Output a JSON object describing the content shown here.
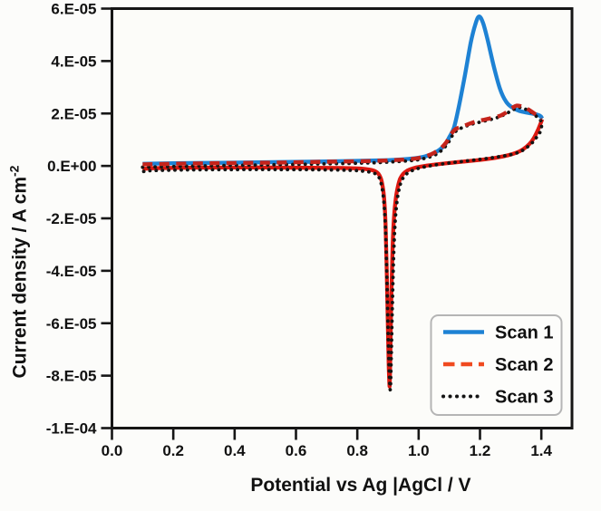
{
  "page": {
    "background": "#fcfcfa"
  },
  "chart_data": {
    "type": "line",
    "title": "",
    "xlabel": "Potential vs Ag |AgCl / V",
    "ylabel": {
      "base": "Current density / A cm",
      "sup": "-2"
    },
    "xlim": [
      0.0,
      1.5
    ],
    "ylim": [
      -0.0001,
      6e-05
    ],
    "grid": false,
    "x_ticks": [
      {
        "v": 0.0,
        "label": "0.0"
      },
      {
        "v": 0.2,
        "label": "0.2"
      },
      {
        "v": 0.4,
        "label": "0.4"
      },
      {
        "v": 0.6,
        "label": "0.6"
      },
      {
        "v": 0.8,
        "label": "0.8"
      },
      {
        "v": 1.0,
        "label": "1.0"
      },
      {
        "v": 1.2,
        "label": "1.2"
      },
      {
        "v": 1.4,
        "label": "1.4"
      }
    ],
    "y_ticks": [
      {
        "v": 6e-05,
        "label": "6.E-05"
      },
      {
        "v": 4e-05,
        "label": "4.E-05"
      },
      {
        "v": 2e-05,
        "label": "2.E-05"
      },
      {
        "v": 0,
        "label": "0.E+00"
      },
      {
        "v": -2e-05,
        "label": "-2.E-05"
      },
      {
        "v": -4e-05,
        "label": "-4.E-05"
      },
      {
        "v": -6e-05,
        "label": "-6.E-05"
      },
      {
        "v": -8e-05,
        "label": "-8.E-05"
      },
      {
        "v": -0.0001,
        "label": "-1.E-04"
      }
    ],
    "legend": {
      "position": "lower-right",
      "entries": [
        {
          "label": "Scan 1",
          "color": "#1e82d4",
          "style": "solid"
        },
        {
          "label": "Scan 2",
          "color": "#f04a1f",
          "style": "dashed"
        },
        {
          "label": "Scan 3",
          "color": "#141414",
          "style": "dotted"
        }
      ]
    },
    "series": [
      {
        "name": "Scan 1 (anodic sweep, blue solid)",
        "legend": "Scan 1",
        "style": "solid",
        "color": "#1e82d4",
        "width": 4.4,
        "points": [
          [
            0.1,
            8e-07
          ],
          [
            0.2,
            1e-06
          ],
          [
            0.35,
            1.2e-06
          ],
          [
            0.5,
            1.4e-06
          ],
          [
            0.65,
            1.6e-06
          ],
          [
            0.8,
            1.9e-06
          ],
          [
            0.9,
            2.2e-06
          ],
          [
            0.97,
            2.7e-06
          ],
          [
            1.02,
            3.6e-06
          ],
          [
            1.06,
            5.5e-06
          ],
          [
            1.085,
            8e-06
          ],
          [
            1.1,
            1.1e-05
          ],
          [
            1.115,
            1.45e-05
          ],
          [
            1.13,
            2.2e-05
          ],
          [
            1.15,
            3.4e-05
          ],
          [
            1.17,
            4.7e-05
          ],
          [
            1.185,
            5.4e-05
          ],
          [
            1.197,
            5.7e-05
          ],
          [
            1.21,
            5.45e-05
          ],
          [
            1.225,
            4.8e-05
          ],
          [
            1.245,
            3.8e-05
          ],
          [
            1.265,
            2.95e-05
          ],
          [
            1.285,
            2.45e-05
          ],
          [
            1.305,
            2.23e-05
          ],
          [
            1.33,
            2.09e-05
          ],
          [
            1.36,
            2.02e-05
          ],
          [
            1.385,
            1.96e-05
          ],
          [
            1.398,
            1.89e-05
          ],
          [
            1.403,
            1.8e-05
          ]
        ]
      },
      {
        "name": "Scan 2 return (cathodic sweep, red solid)",
        "legend": "Scan 2",
        "style": "solid",
        "color": "#dc1810",
        "width": 4.3,
        "points": [
          [
            1.403,
            1.78e-05
          ],
          [
            1.39,
            1.4e-05
          ],
          [
            1.375,
            1.05e-05
          ],
          [
            1.36,
            8.2e-06
          ],
          [
            1.34,
            6.3e-06
          ],
          [
            1.32,
            5.1e-06
          ],
          [
            1.29,
            4e-06
          ],
          [
            1.25,
            3.1e-06
          ],
          [
            1.2,
            2.3e-06
          ],
          [
            1.15,
            1.7e-06
          ],
          [
            1.1,
            1.1e-06
          ],
          [
            1.05,
            5e-07
          ],
          [
            1.02,
            0
          ],
          [
            1.0,
            -4e-07
          ],
          [
            0.98,
            -1e-06
          ],
          [
            0.963,
            -1.8e-06
          ],
          [
            0.95,
            -3e-06
          ],
          [
            0.94,
            -4.8e-06
          ],
          [
            0.933,
            -7.5e-06
          ],
          [
            0.926,
            -1.2e-05
          ],
          [
            0.92,
            -1.9e-05
          ],
          [
            0.915,
            -3.1e-05
          ],
          [
            0.911,
            -5e-05
          ],
          [
            0.908,
            -7e-05
          ],
          [
            0.9065,
            -8e-05
          ],
          [
            0.905,
            -8.4e-05
          ],
          [
            0.9025,
            -7.6e-05
          ],
          [
            0.899,
            -5.8e-05
          ],
          [
            0.8955,
            -3.8e-05
          ],
          [
            0.892,
            -2.2e-05
          ],
          [
            0.888,
            -1.3e-05
          ],
          [
            0.883,
            -8e-06
          ],
          [
            0.877,
            -4.8e-06
          ],
          [
            0.869,
            -3e-06
          ],
          [
            0.858,
            -2e-06
          ],
          [
            0.84,
            -1.4e-06
          ],
          [
            0.81,
            -1e-06
          ],
          [
            0.75,
            -8e-07
          ],
          [
            0.65,
            -7e-07
          ],
          [
            0.5,
            -6e-07
          ],
          [
            0.35,
            -6e-07
          ],
          [
            0.22,
            -7e-07
          ],
          [
            0.13,
            -9e-07
          ],
          [
            0.1,
            -1.2e-06
          ]
        ]
      },
      {
        "name": "Scan 3 (full cycle, black dotted)",
        "legend": "Scan 3",
        "style": "dotted",
        "color": "#141414",
        "width": 3.8,
        "points": [
          [
            0.1,
            -5e-07
          ],
          [
            0.25,
            -1e-07
          ],
          [
            0.4,
            2e-07
          ],
          [
            0.55,
            5e-07
          ],
          [
            0.7,
            8e-07
          ],
          [
            0.85,
            1.2e-06
          ],
          [
            0.95,
            1.8e-06
          ],
          [
            1.0,
            2.4e-06
          ],
          [
            1.05,
            4e-06
          ],
          [
            1.08,
            6.5e-06
          ],
          [
            1.1,
            9.5e-06
          ],
          [
            1.115,
            1.25e-05
          ],
          [
            1.135,
            1.42e-05
          ],
          [
            1.17,
            1.58e-05
          ],
          [
            1.21,
            1.7e-05
          ],
          [
            1.25,
            1.82e-05
          ],
          [
            1.28,
            1.96e-05
          ],
          [
            1.305,
            2.12e-05
          ],
          [
            1.325,
            2.23e-05
          ],
          [
            1.345,
            2.18e-05
          ],
          [
            1.365,
            2.06e-05
          ],
          [
            1.385,
            1.88e-05
          ],
          [
            1.4,
            1.68e-05
          ],
          [
            1.398,
            1.35e-05
          ],
          [
            1.385,
            1.1e-05
          ],
          [
            1.37,
            8.8e-06
          ],
          [
            1.35,
            6.8e-06
          ],
          [
            1.33,
            5.4e-06
          ],
          [
            1.3,
            4.3e-06
          ],
          [
            1.25,
            3.3e-06
          ],
          [
            1.2,
            2.5e-06
          ],
          [
            1.15,
            1.8e-06
          ],
          [
            1.1,
            1.1e-06
          ],
          [
            1.05,
            3e-07
          ],
          [
            1.01,
            -6e-07
          ],
          [
            0.99,
            -1.3e-06
          ],
          [
            0.97,
            -2.3e-06
          ],
          [
            0.955,
            -3.7e-06
          ],
          [
            0.944,
            -5.8e-06
          ],
          [
            0.936,
            -9e-06
          ],
          [
            0.929,
            -1.4e-05
          ],
          [
            0.923,
            -2.2e-05
          ],
          [
            0.918,
            -3.6e-05
          ],
          [
            0.914,
            -5.5e-05
          ],
          [
            0.9105,
            -7.3e-05
          ],
          [
            0.908,
            -8.5e-05
          ],
          [
            0.905,
            -8.1e-05
          ],
          [
            0.901,
            -6.6e-05
          ],
          [
            0.897,
            -4.5e-05
          ],
          [
            0.893,
            -2.7e-05
          ],
          [
            0.888,
            -1.55e-05
          ],
          [
            0.882,
            -9.2e-06
          ],
          [
            0.875,
            -5.6e-06
          ],
          [
            0.866,
            -3.6e-06
          ],
          [
            0.85,
            -2.6e-06
          ],
          [
            0.82,
            -2e-06
          ],
          [
            0.78,
            -1.7e-06
          ],
          [
            0.7,
            -1.5e-06
          ],
          [
            0.55,
            -1.4e-06
          ],
          [
            0.4,
            -1.4e-06
          ],
          [
            0.25,
            -1.5e-06
          ],
          [
            0.13,
            -1.8e-06
          ],
          [
            0.1,
            -2.2e-06
          ]
        ]
      },
      {
        "name": "Scan 2 forward (anodic sweep, red dashed)",
        "legend": "Scan 2",
        "style": "dashed",
        "color": "#c5241c",
        "width": 4.4,
        "points": [
          [
            0.1,
            6e-07
          ],
          [
            0.25,
            9e-07
          ],
          [
            0.4,
            1.1e-06
          ],
          [
            0.55,
            1.3e-06
          ],
          [
            0.7,
            1.6e-06
          ],
          [
            0.85,
            1.9e-06
          ],
          [
            0.95,
            2.4e-06
          ],
          [
            1.0,
            3e-06
          ],
          [
            1.04,
            4.4e-06
          ],
          [
            1.07,
            6.5e-06
          ],
          [
            1.09,
            9e-06
          ],
          [
            1.105,
            1.2e-05
          ],
          [
            1.12,
            1.4e-05
          ],
          [
            1.14,
            1.49e-05
          ],
          [
            1.18,
            1.67e-05
          ],
          [
            1.22,
            1.78e-05
          ],
          [
            1.26,
            1.89e-05
          ],
          [
            1.28,
            2e-05
          ],
          [
            1.3,
            2.17e-05
          ],
          [
            1.32,
            2.3e-05
          ],
          [
            1.34,
            2.25e-05
          ],
          [
            1.358,
            2.15e-05
          ],
          [
            1.383,
            1.95e-05
          ],
          [
            1.4,
            1.78e-05
          ]
        ]
      }
    ]
  }
}
